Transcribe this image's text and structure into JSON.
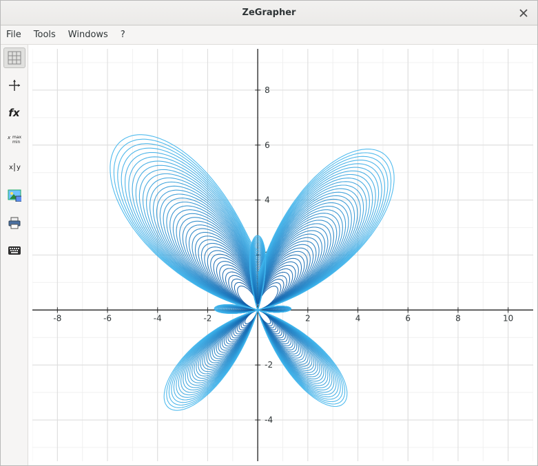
{
  "window": {
    "title": "ZeGrapher"
  },
  "menubar": {
    "items": [
      "File",
      "Tools",
      "Windows",
      "?"
    ]
  },
  "toolbar": {
    "items": [
      {
        "name": "grid-toggle",
        "icon": "grid",
        "active": true
      },
      {
        "name": "axes-tool",
        "icon": "axes"
      },
      {
        "name": "functions-tool",
        "icon": "fx"
      },
      {
        "name": "minmax-tool",
        "icon": "minmax"
      },
      {
        "name": "table-tool",
        "icon": "xy"
      },
      {
        "name": "image-export",
        "icon": "image"
      },
      {
        "name": "print-tool",
        "icon": "printer"
      },
      {
        "name": "keyboard-tool",
        "icon": "keyboard"
      }
    ]
  },
  "chart": {
    "type": "parametric",
    "background_color": "#ffffff",
    "grid_color": "#dcdcdc",
    "minor_grid_color": "#f0f0f0",
    "axis_color": "#2e2e2e",
    "tick_color": "#2e2e2e",
    "label_fontsize": 12,
    "xlim": [
      -9,
      11
    ],
    "ylim": [
      -5.5,
      9.5
    ],
    "xticks": [
      -8,
      -6,
      -4,
      -2,
      2,
      4,
      6,
      8,
      10
    ],
    "yticks": [
      -4,
      -2,
      2,
      4,
      6,
      8
    ],
    "aspect": "equal",
    "curve": {
      "description": "Butterfly curve: r(t) = e^cos(t) - 2 cos(4t) + sin(t/12)^5; x = r sin t, y = r cos t",
      "t_start": 0,
      "t_end": 75.398,
      "samples": 3600,
      "scale": 1.85,
      "color_inner": "#0a5aa6",
      "color_outer": "#3eb4ec",
      "loops": 40,
      "line_width": 1.1
    }
  }
}
